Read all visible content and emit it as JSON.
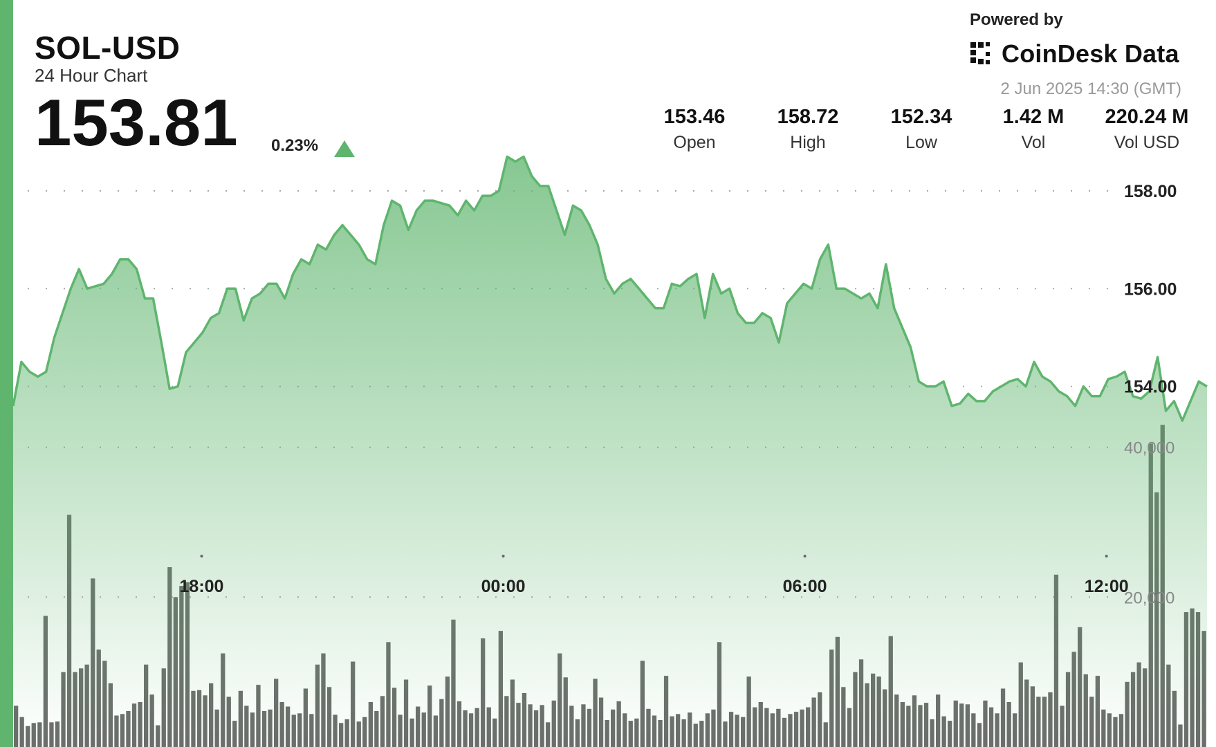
{
  "header": {
    "pair": "SOL-USD",
    "subtitle": "24 Hour Chart",
    "price": "153.81",
    "change": "0.23%",
    "change_direction": "up",
    "powered_by": "Powered by",
    "brand": "CoinDesk Data",
    "brand_icon": "coindesk-logo-icon",
    "timestamp": "2 Jun 2025 14:30 (GMT)"
  },
  "stats": [
    {
      "value": "153.46",
      "label": "Open"
    },
    {
      "value": "158.72",
      "label": "High"
    },
    {
      "value": "152.34",
      "label": "Low"
    },
    {
      "value": "1.42 M",
      "label": "Vol"
    },
    {
      "value": "220.24 M",
      "label": "Vol USD"
    }
  ],
  "colors": {
    "accent": "#5fb56e",
    "line": "#5fb56e",
    "volume_bar": "#6b6e6b",
    "grid": "#a8a8a8"
  },
  "chart_data": {
    "type": "line",
    "title": "",
    "xlabel": "",
    "ylabel": "",
    "x_ticks": [
      "18:00",
      "00:00",
      "06:00",
      "12:00"
    ],
    "x_tick_hours": [
      3.75,
      9.75,
      15.75,
      21.75
    ],
    "x_range_hours": [
      0,
      23.75
    ],
    "ylim": [
      150.5,
      159.5
    ],
    "y_ticks": [
      "158.00",
      "156.00",
      "154.00"
    ],
    "y_tick_values": [
      158,
      156,
      154
    ],
    "grid": true,
    "series": [
      {
        "values": [
          153.6,
          154.5,
          154.3,
          154.2,
          154.3,
          155.0,
          155.5,
          156.0,
          156.4,
          156.0,
          156.05,
          156.1,
          156.3,
          156.6,
          156.6,
          156.4,
          155.8,
          155.8,
          154.9,
          153.95,
          154.0,
          154.7,
          154.9,
          155.1,
          155.4,
          155.5,
          156.0,
          156.0,
          155.35,
          155.8,
          155.9,
          156.1,
          156.1,
          155.8,
          156.3,
          156.6,
          156.5,
          156.9,
          156.8,
          157.1,
          157.3,
          157.1,
          156.9,
          156.6,
          156.5,
          157.3,
          157.8,
          157.7,
          157.2,
          157.6,
          157.8,
          157.8,
          157.75,
          157.7,
          157.5,
          157.8,
          157.6,
          157.9,
          157.9,
          158.0,
          158.7,
          158.6,
          158.7,
          158.3,
          158.1,
          158.1,
          157.6,
          157.1,
          157.7,
          157.6,
          157.3,
          156.9,
          156.2,
          155.9,
          156.1,
          156.2,
          156.0,
          155.8,
          155.6,
          155.6,
          156.1,
          156.05,
          156.2,
          156.3,
          155.4,
          156.3,
          155.9,
          156.0,
          155.5,
          155.3,
          155.3,
          155.5,
          155.4,
          154.9,
          155.7,
          155.9,
          156.1,
          156.0,
          156.6,
          156.9,
          156.0,
          156.0,
          155.9,
          155.8,
          155.9,
          155.6,
          156.5,
          155.6,
          155.2,
          154.8,
          154.1,
          154.0,
          154.0,
          154.1,
          153.6,
          153.65,
          153.85,
          153.7,
          153.7,
          153.9,
          154.0,
          154.1,
          154.15,
          154.0,
          154.5,
          154.2,
          154.1,
          153.9,
          153.8,
          153.6,
          154.0,
          153.8,
          153.8,
          154.15,
          154.2,
          154.3,
          153.8,
          153.75,
          153.9,
          154.6,
          153.5,
          153.7,
          153.3,
          153.7,
          154.1,
          154.0
        ]
      }
    ],
    "volume": {
      "y_ticks": [
        "40,000",
        "20,000"
      ],
      "y_tick_values": [
        40000,
        20000
      ],
      "ylim": [
        0,
        48000
      ],
      "values": [
        5500,
        4000,
        2800,
        3200,
        3300,
        17500,
        3300,
        3400,
        10000,
        31000,
        10000,
        10500,
        11000,
        22500,
        13000,
        11500,
        8500,
        4200,
        4400,
        4800,
        5800,
        6000,
        11000,
        7000,
        2900,
        10500,
        24000,
        20000,
        21500,
        22000,
        7500,
        7600,
        6900,
        8500,
        5000,
        12500,
        6700,
        3500,
        7500,
        5500,
        4600,
        8300,
        4800,
        5000,
        9100,
        6000,
        5400,
        4300,
        4500,
        7800,
        4400,
        11000,
        12500,
        8000,
        4300,
        3200,
        3700,
        11400,
        3400,
        4000,
        6000,
        4800,
        6800,
        14000,
        7900,
        4300,
        9000,
        3800,
        5400,
        4600,
        8200,
        4200,
        6400,
        9400,
        17000,
        6100,
        4900,
        4500,
        5200,
        14500,
        5300,
        3800,
        15500,
        6800,
        9000,
        5900,
        7200,
        5700,
        4900,
        5600,
        3300,
        6200,
        12500,
        9300,
        5500,
        3700,
        5700,
        5100,
        9100,
        6600,
        3600,
        5000,
        6100,
        4500,
        3500,
        3800,
        11500,
        5100,
        4200,
        3600,
        9500,
        4100,
        4400,
        3700,
        4600,
        3100,
        3500,
        4500,
        5000,
        14000,
        3400,
        4700,
        4300,
        4000,
        9400,
        5300,
        6000,
        5200,
        4500,
        5100,
        3900,
        4400,
        4700,
        5000,
        5300,
        6600,
        7300,
        3300,
        13000,
        14700,
        8000,
        5200,
        10000,
        11700,
        8500,
        9800,
        9400,
        7700,
        14800,
        7000,
        6000,
        5500,
        6900,
        5600,
        5900,
        3700,
        7000,
        4100,
        3500,
        6200,
        5800,
        5700,
        4500,
        3200,
        6200,
        5300,
        4500,
        7800,
        6000,
        4500,
        11300,
        9000,
        8100,
        6700,
        6700,
        7300,
        23000,
        5500,
        10000,
        12700,
        16000,
        9700,
        6700,
        9500,
        5000,
        4500,
        4000,
        4400,
        8700,
        10000,
        11300,
        10500,
        40500,
        34000,
        43000,
        11000,
        7500,
        3000,
        18000,
        18500,
        18000,
        15500
      ]
    }
  }
}
